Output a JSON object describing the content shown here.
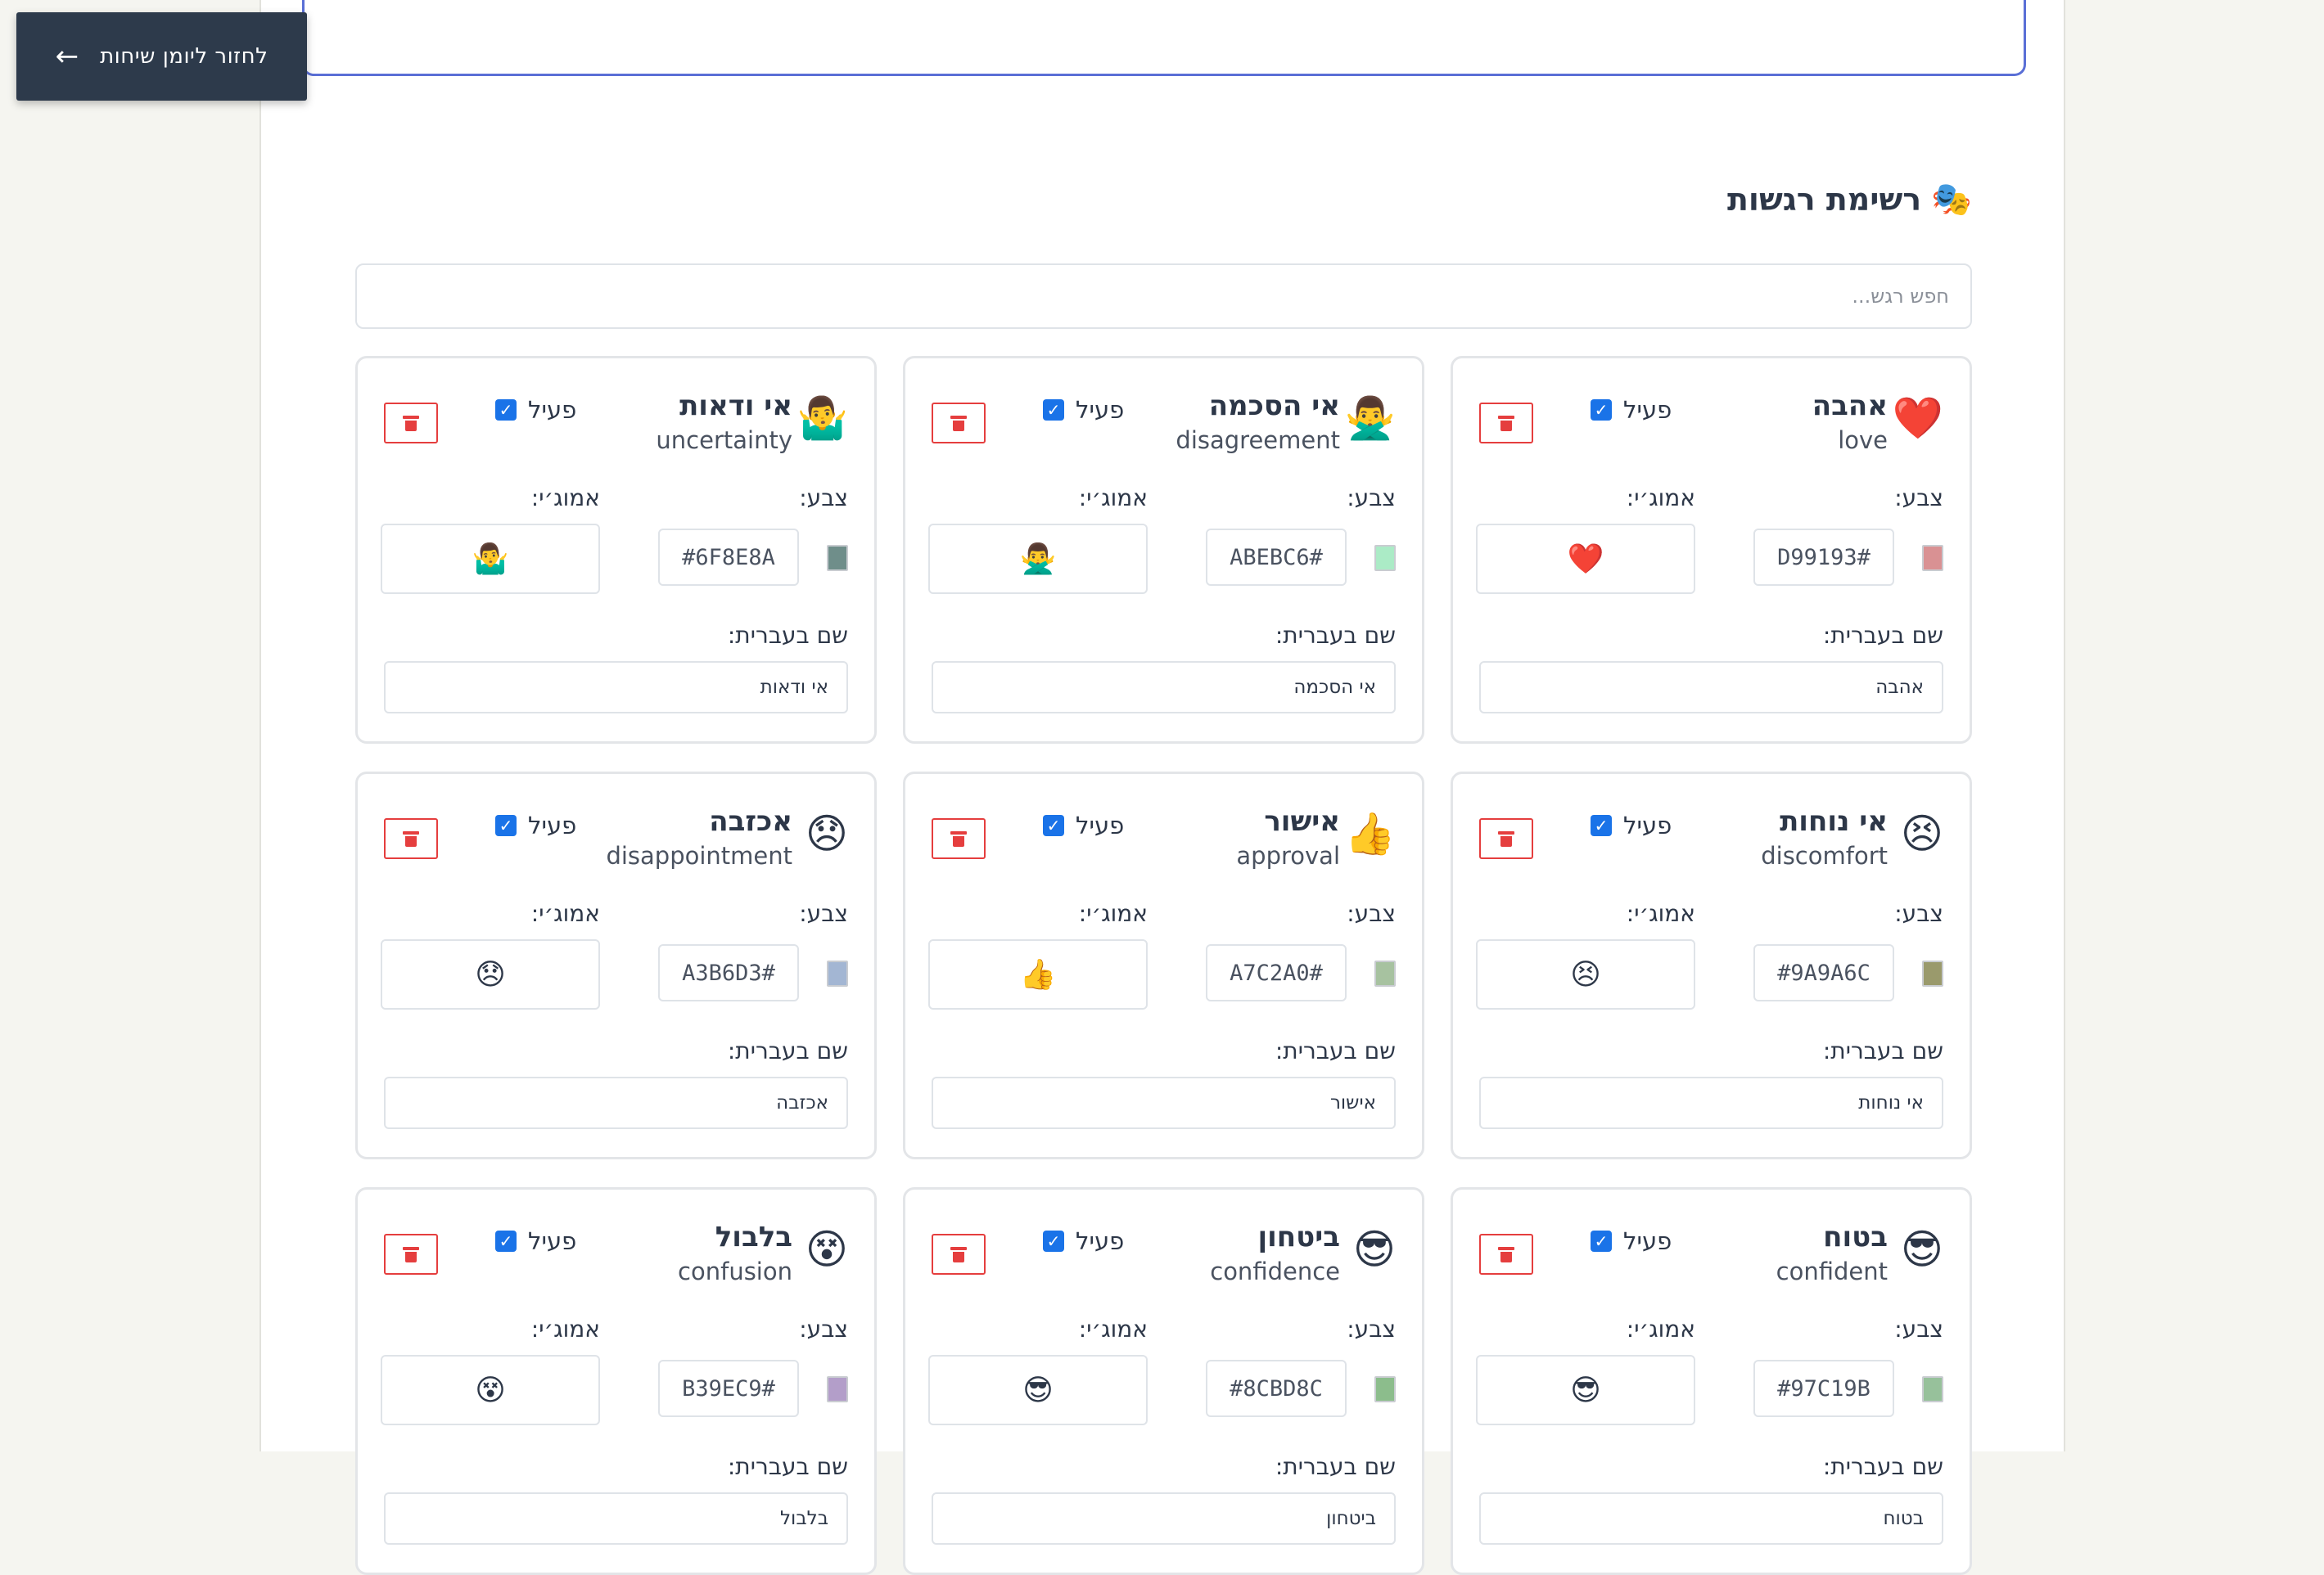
{
  "back_button": {
    "label": "לחזור ליומן שיחות",
    "icon": "←"
  },
  "section": {
    "title": "רשימת רגשות",
    "title_icon": "🎭"
  },
  "search": {
    "placeholder": "חפש רגש..."
  },
  "labels": {
    "active": "פעיל",
    "color": "צבע:",
    "emoji": "אמוג׳י:",
    "hebrew_name": "שם בעברית:"
  },
  "emotions": [
    {
      "he": "אהבה",
      "en": "love",
      "emoji": "❤️",
      "color_hex": "D99193#",
      "swatch": "#D99193",
      "active": true
    },
    {
      "he": "אי הסכמה",
      "en": "disagreement",
      "emoji": "🙅‍♂️",
      "color_hex": "ABEBC6#",
      "swatch": "#ABEBC6",
      "active": true
    },
    {
      "he": "אי ודאות",
      "en": "uncertainty",
      "emoji": "🤷‍♂️",
      "color_hex": "#6F8E8A",
      "swatch": "#6F8E8A",
      "active": true
    },
    {
      "he": "אי נוחות",
      "en": "discomfort",
      "emoji": "😣",
      "color_hex": "#9A9A6C",
      "swatch": "#9A9A6C",
      "active": true
    },
    {
      "he": "אישור",
      "en": "approval",
      "emoji": "👍",
      "color_hex": "A7C2A0#",
      "swatch": "#A7C2A0",
      "active": true
    },
    {
      "he": "אכזבה",
      "en": "disappointment",
      "emoji": "😞",
      "color_hex": "A3B6D3#",
      "swatch": "#A3B6D3",
      "active": true
    },
    {
      "he": "בטוח",
      "en": "confident",
      "emoji": "😎",
      "color_hex": "#97C19B",
      "swatch": "#97C19B",
      "active": true
    },
    {
      "he": "ביטחון",
      "en": "confidence",
      "emoji": "😎",
      "color_hex": "#8CBD8C",
      "swatch": "#8CBD8C",
      "active": true
    },
    {
      "he": "בלבול",
      "en": "confusion",
      "emoji": "😵",
      "color_hex": "B39EC9#",
      "swatch": "#B39EC9",
      "active": true
    }
  ]
}
